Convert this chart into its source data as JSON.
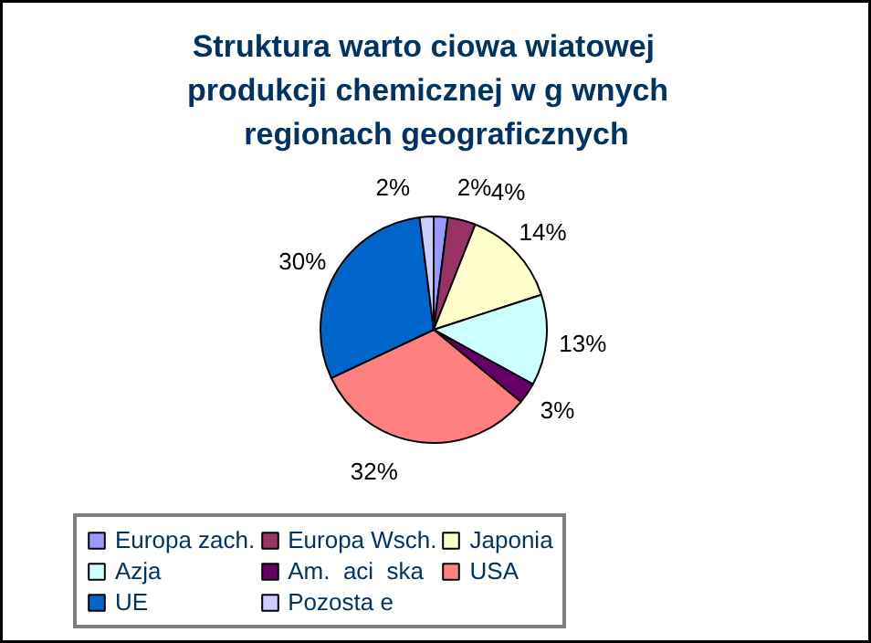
{
  "chart_data": {
    "type": "pie",
    "title": "Struktura warto  ciowa   wiatowej produkcji chemicznej w g   wnych regionach geograficznych",
    "categories": [
      "Europa zach.",
      "Europa Wsch.",
      "Japonia",
      "Azja",
      "Am.  aci  ska",
      "USA",
      "UE",
      "Pozosta e"
    ],
    "values": [
      2,
      4,
      14,
      13,
      3,
      32,
      30,
      2
    ],
    "value_labels": [
      "2%",
      "4%",
      "14%",
      "13%",
      "3%",
      "32%",
      "30%",
      "2%"
    ],
    "colors": [
      "#9999ff",
      "#993366",
      "#ffffcc",
      "#ccffff",
      "#660066",
      "#ff8080",
      "#0066cc",
      "#ccccff"
    ],
    "legend": "bottom"
  }
}
